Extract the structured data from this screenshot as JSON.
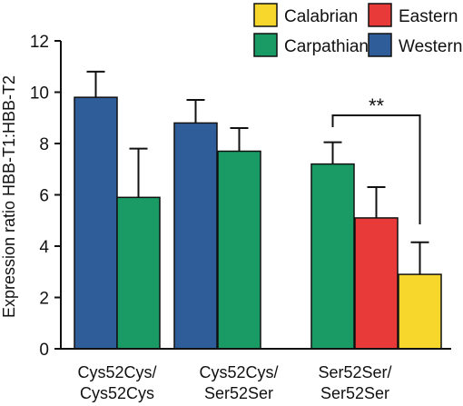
{
  "chart_data": {
    "type": "bar",
    "ylabel": "Expression ratio HBB-T1:HBB-T2",
    "ylim": [
      0,
      12
    ],
    "yticks": [
      "0",
      "2",
      "4",
      "6",
      "8",
      "10",
      "12"
    ],
    "categories": [
      {
        "line1": "Cys52Cys/",
        "line2": "Cys52Cys"
      },
      {
        "line1": "Cys52Cys/",
        "line2": "Ser52Ser"
      },
      {
        "line1": "Ser52Ser/",
        "line2": "Ser52Ser"
      }
    ],
    "legend": [
      {
        "name": "Calabrian",
        "color": "#f7d72c"
      },
      {
        "name": "Eastern",
        "color": "#e83a38"
      },
      {
        "name": "Carpathian",
        "color": "#1a9a65"
      },
      {
        "name": "Western",
        "color": "#2e5d99"
      }
    ],
    "bars": [
      {
        "category": 0,
        "series": "Western",
        "value": 9.8,
        "error": 1.0,
        "color": "#2e5d99"
      },
      {
        "category": 0,
        "series": "Carpathian",
        "value": 5.9,
        "error": 1.9,
        "color": "#1a9a65"
      },
      {
        "category": 1,
        "series": "Western",
        "value": 8.8,
        "error": 0.9,
        "color": "#2e5d99"
      },
      {
        "category": 1,
        "series": "Carpathian",
        "value": 7.7,
        "error": 0.9,
        "color": "#1a9a65"
      },
      {
        "category": 2,
        "series": "Carpathian",
        "value": 7.2,
        "error": 0.85,
        "color": "#1a9a65"
      },
      {
        "category": 2,
        "series": "Eastern",
        "value": 5.1,
        "error": 1.2,
        "color": "#e83a38"
      },
      {
        "category": 2,
        "series": "Calabrian",
        "value": 2.9,
        "error": 1.25,
        "color": "#f7d72c"
      }
    ],
    "significance": {
      "label": "**",
      "from_bar": 4,
      "to_bar": 6
    }
  }
}
